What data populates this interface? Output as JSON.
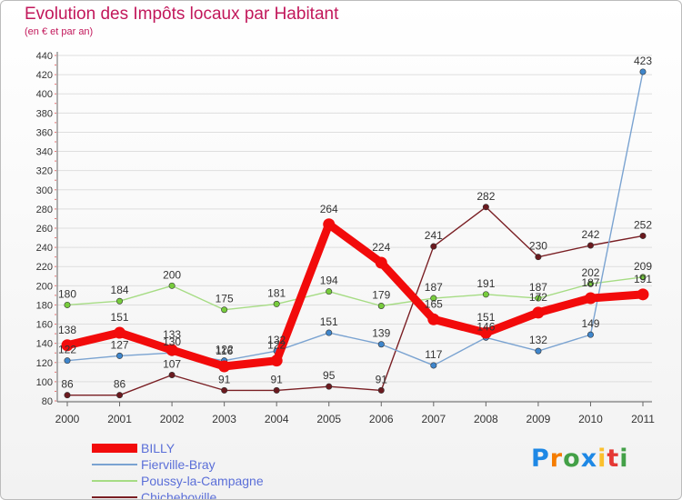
{
  "title": "Evolution des Impôts locaux par Habitant",
  "subtitle": "(en € et par an)",
  "logo": {
    "text": "Proxiti",
    "letters": [
      "P",
      "r",
      "o",
      "x",
      "i",
      "t",
      "i"
    ],
    "colors": [
      "#1e88e5",
      "#f57c00",
      "#43a047",
      "#1e88e5",
      "#fbc02d",
      "#e53935",
      "#43a047"
    ]
  },
  "chart_data": {
    "type": "line",
    "title": "Evolution des Impôts locaux par Habitant",
    "subtitle": "(en € et par an)",
    "xlabel": "",
    "ylabel": "",
    "x": [
      "2000",
      "2001",
      "2002",
      "2003",
      "2004",
      "2005",
      "2006",
      "2007",
      "2008",
      "2009",
      "2010",
      "2011"
    ],
    "ylim": [
      80,
      440
    ],
    "yticks": [
      80,
      100,
      120,
      140,
      160,
      180,
      200,
      220,
      240,
      260,
      280,
      300,
      320,
      340,
      360,
      380,
      400,
      420,
      440
    ],
    "grid": "horizontal",
    "legend_position": "bottom-left",
    "series": [
      {
        "name": "Chicheboville",
        "color": "#7a1f24",
        "marker": "#6b1a1f",
        "values": [
          86,
          86,
          107,
          91,
          91,
          95,
          91,
          241,
          282,
          230,
          242,
          252
        ],
        "labels": [
          "86",
          "86",
          "107",
          "91",
          "91",
          "95",
          "91",
          "241",
          "282",
          "230",
          "242",
          "252"
        ]
      },
      {
        "name": "Poussy-la-Campagne",
        "color": "#a6dc84",
        "marker": "#77cc3c",
        "values": [
          180,
          184,
          200,
          175,
          181,
          194,
          179,
          187,
          191,
          187,
          202,
          209
        ],
        "labels": [
          "180",
          "184",
          "200",
          "175",
          "181",
          "194",
          "179",
          "187",
          "191",
          "187",
          "202",
          "209"
        ]
      },
      {
        "name": "Fierville-Bray",
        "color": "#7aa3d1",
        "marker": "#3f86cc",
        "values": [
          122,
          127,
          130,
          122,
          132,
          151,
          139,
          117,
          146,
          132,
          149,
          423
        ],
        "labels": [
          "122",
          "127",
          "130",
          "122",
          "132",
          "151",
          "139",
          "117",
          "146",
          "132",
          "149",
          "423"
        ]
      },
      {
        "name": "BILLY",
        "color": "#f20b0b",
        "marker": "#f20b0b",
        "values": [
          138,
          151,
          133,
          116,
          122,
          264,
          224,
          165,
          151,
          172,
          187,
          191
        ],
        "labels": [
          "138",
          "151",
          "133",
          "116",
          "122",
          "264",
          "224",
          "165",
          "151",
          "172",
          "187",
          "191"
        ]
      }
    ]
  },
  "legend": [
    {
      "label": "BILLY",
      "color": "#f20b0b",
      "width": 10
    },
    {
      "label": "Fierville-Bray",
      "color": "#7aa3d1",
      "width": 2
    },
    {
      "label": "Poussy-la-Campagne",
      "color": "#a6dc84",
      "width": 2
    },
    {
      "label": "Chicheboville",
      "color": "#7a1f24",
      "width": 2
    }
  ]
}
